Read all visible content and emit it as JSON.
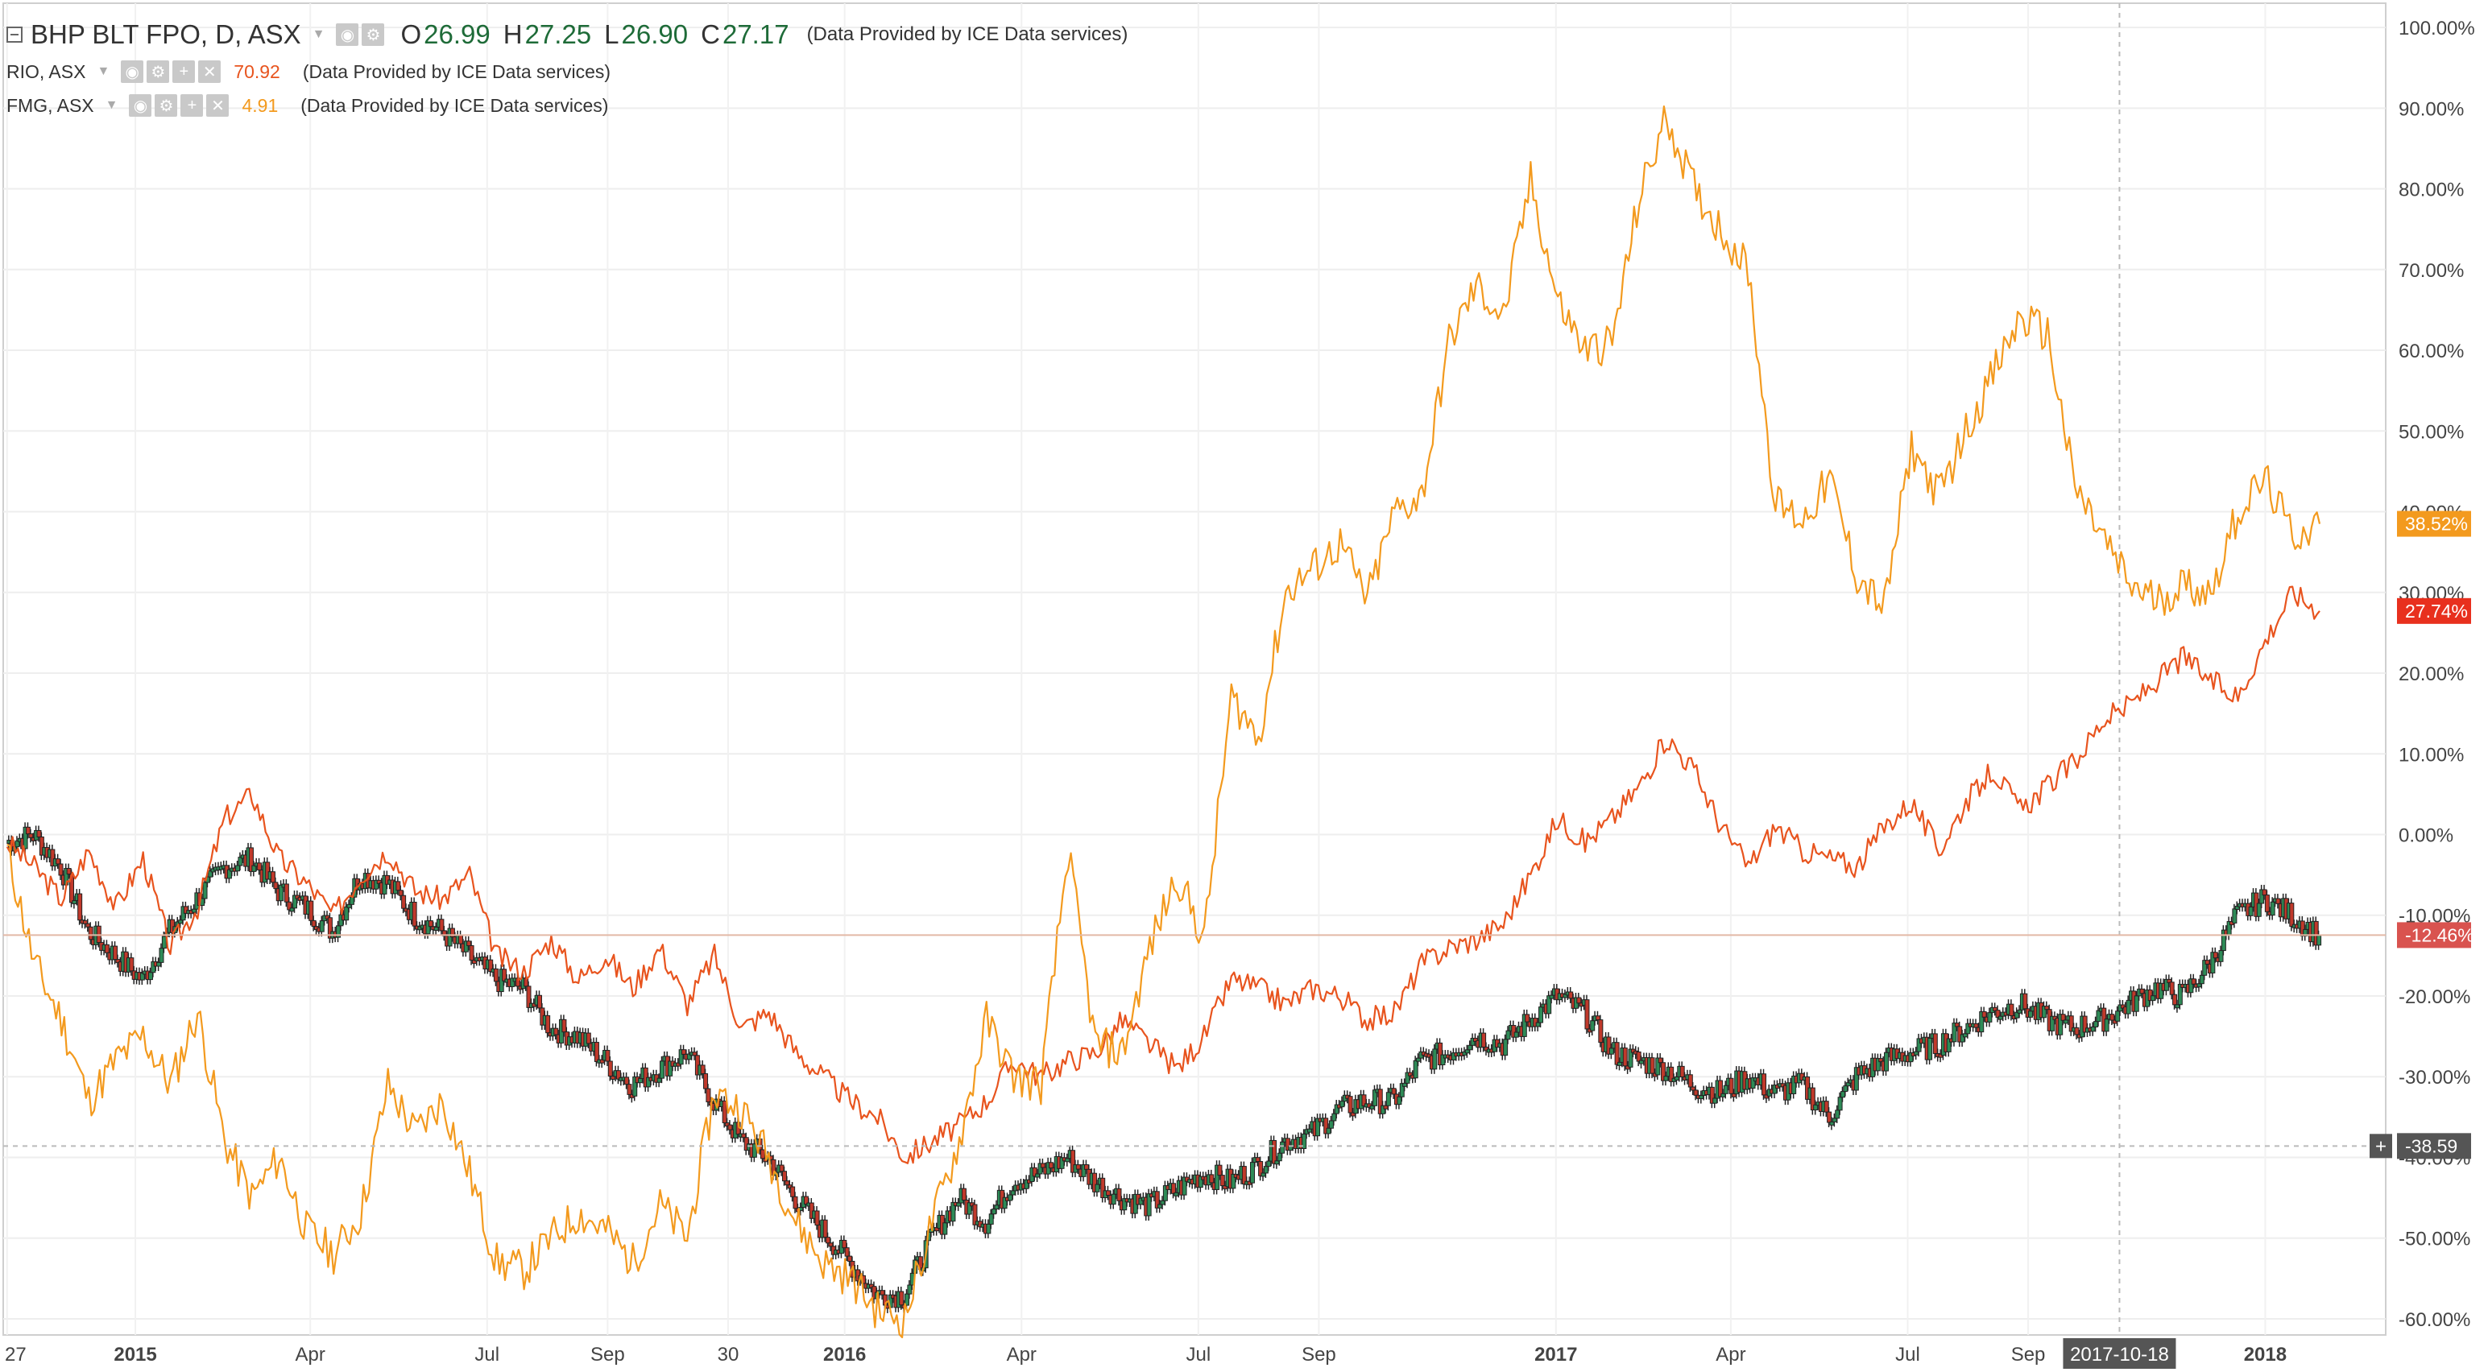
{
  "legend": {
    "main_title": "BHP BLT FPO, D, ASX",
    "open_label": "O",
    "open_value": "26.99",
    "high_label": "H",
    "high_value": "27.25",
    "low_label": "L",
    "low_value": "26.90",
    "close_label": "C",
    "close_value": "27.17",
    "main_provider": "(Data Provided by ICE Data services)",
    "series": [
      {
        "name": "RIO, ASX",
        "value": "70.92",
        "color": "#e8541e",
        "provider": "(Data Provided by ICE Data services)"
      },
      {
        "name": "FMG, ASX",
        "value": "4.91",
        "color": "#f39a1e",
        "provider": "(Data Provided by ICE Data services)"
      }
    ]
  },
  "chart_data": {
    "type": "line",
    "title": "BHP BLT FPO, D, ASX",
    "y_unit": "%",
    "ylim": [
      -62,
      103
    ],
    "y_ticks": [
      "100.00%",
      "90.00%",
      "80.00%",
      "70.00%",
      "60.00%",
      "50.00%",
      "40.00%",
      "30.00%",
      "20.00%",
      "10.00%",
      "0.00%",
      "-10.00%",
      "-20.00%",
      "-30.00%",
      "-40.00%",
      "-50.00%",
      "-60.00%"
    ],
    "x_ticks": [
      "27",
      "2015",
      "Apr",
      "Jul",
      "Sep",
      "30",
      "2016",
      "Apr",
      "Jul",
      "Sep",
      "2017",
      "Apr",
      "Jul",
      "Sep",
      "2017-10-18",
      "2018"
    ],
    "grid": true,
    "series": [
      {
        "name": "FMG, ASX",
        "color": "#f39a1e",
        "last_label": "38.52%",
        "style": "line",
        "x": [
          "2014-10-27",
          "2014-11-10",
          "2014-11-24",
          "2014-12-08",
          "2014-12-22",
          "2015-01-05",
          "2015-01-19",
          "2015-02-02",
          "2015-02-16",
          "2015-03-02",
          "2015-03-16",
          "2015-03-30",
          "2015-04-13",
          "2015-04-27",
          "2015-05-11",
          "2015-05-25",
          "2015-06-08",
          "2015-06-22",
          "2015-07-06",
          "2015-07-20",
          "2015-08-03",
          "2015-08-17",
          "2015-08-31",
          "2015-09-14",
          "2015-09-28",
          "2015-10-12",
          "2015-10-26",
          "2015-11-09",
          "2015-11-23",
          "2015-12-07",
          "2015-12-21",
          "2016-01-04",
          "2016-01-18",
          "2016-02-01",
          "2016-02-15",
          "2016-02-29",
          "2016-03-14",
          "2016-03-28",
          "2016-04-11",
          "2016-04-25",
          "2016-05-09",
          "2016-05-23",
          "2016-06-06",
          "2016-06-20",
          "2016-07-04",
          "2016-07-18",
          "2016-08-01",
          "2016-08-15",
          "2016-08-29",
          "2016-09-12",
          "2016-09-26",
          "2016-10-10",
          "2016-10-24",
          "2016-11-07",
          "2016-11-21",
          "2016-12-05",
          "2016-12-19",
          "2017-01-02",
          "2017-01-16",
          "2017-01-30",
          "2017-02-13",
          "2017-02-27",
          "2017-03-13",
          "2017-03-27",
          "2017-04-10",
          "2017-04-24",
          "2017-05-08",
          "2017-05-22",
          "2017-06-05",
          "2017-06-19",
          "2017-07-03",
          "2017-07-17",
          "2017-07-31",
          "2017-08-14",
          "2017-08-28",
          "2017-09-11",
          "2017-09-25",
          "2017-10-09",
          "2017-10-23",
          "2017-11-06",
          "2017-11-20",
          "2017-12-04",
          "2017-12-18",
          "2018-01-01",
          "2018-01-15",
          "2018-01-29"
        ],
        "values": [
          -2,
          -16,
          -23,
          -33,
          -28,
          -25,
          -31,
          -22,
          -38,
          -45,
          -40,
          -49,
          -52,
          -47,
          -31,
          -37,
          -33,
          -42,
          -53,
          -54,
          -50,
          -47,
          -49,
          -53,
          -46,
          -50,
          -32,
          -34,
          -40,
          -48,
          -53,
          -55,
          -59,
          -60,
          -48,
          -38,
          -23,
          -30,
          -31,
          -2,
          -26,
          -27,
          -14,
          -5,
          -13,
          17,
          12,
          30,
          33,
          36,
          29,
          40,
          42,
          61,
          68,
          64,
          81,
          66,
          60,
          61,
          79,
          89,
          80,
          75,
          70,
          41,
          39,
          44,
          32,
          28,
          48,
          42,
          50,
          57,
          64,
          62,
          43,
          37,
          31,
          29,
          31,
          30,
          40,
          44,
          37,
          38.5
        ]
      },
      {
        "name": "RIO, ASX",
        "color": "#e8541e",
        "last_label": "27.74%",
        "style": "line",
        "x": [
          "2014-10-27",
          "2014-11-10",
          "2014-11-24",
          "2014-12-08",
          "2014-12-22",
          "2015-01-05",
          "2015-01-19",
          "2015-02-02",
          "2015-02-16",
          "2015-03-02",
          "2015-03-16",
          "2015-03-30",
          "2015-04-13",
          "2015-04-27",
          "2015-05-11",
          "2015-05-25",
          "2015-06-08",
          "2015-06-22",
          "2015-07-06",
          "2015-07-20",
          "2015-08-03",
          "2015-08-17",
          "2015-08-31",
          "2015-09-14",
          "2015-09-28",
          "2015-10-12",
          "2015-10-26",
          "2015-11-09",
          "2015-11-23",
          "2015-12-07",
          "2015-12-21",
          "2016-01-04",
          "2016-01-18",
          "2016-02-01",
          "2016-02-15",
          "2016-02-29",
          "2016-03-14",
          "2016-03-28",
          "2016-04-11",
          "2016-04-25",
          "2016-05-09",
          "2016-05-23",
          "2016-06-06",
          "2016-06-20",
          "2016-07-04",
          "2016-07-18",
          "2016-08-01",
          "2016-08-15",
          "2016-08-29",
          "2016-09-12",
          "2016-09-26",
          "2016-10-10",
          "2016-10-24",
          "2016-11-07",
          "2016-11-21",
          "2016-12-05",
          "2016-12-19",
          "2017-01-02",
          "2017-01-16",
          "2017-01-30",
          "2017-02-13",
          "2017-02-27",
          "2017-03-13",
          "2017-03-27",
          "2017-04-10",
          "2017-04-24",
          "2017-05-08",
          "2017-05-22",
          "2017-06-05",
          "2017-06-19",
          "2017-07-03",
          "2017-07-17",
          "2017-07-31",
          "2017-08-14",
          "2017-08-28",
          "2017-09-11",
          "2017-09-25",
          "2017-10-09",
          "2017-10-23",
          "2017-11-06",
          "2017-11-20",
          "2017-12-04",
          "2017-12-18",
          "2018-01-01",
          "2018-01-15",
          "2018-01-29"
        ],
        "values": [
          -1,
          -4,
          -8,
          -2,
          -9,
          -3,
          -14,
          -9,
          2,
          5,
          -3,
          -6,
          -10,
          -5,
          -2,
          -7,
          -8,
          -5,
          -15,
          -17,
          -13,
          -18,
          -15,
          -19,
          -14,
          -21,
          -15,
          -24,
          -22,
          -27,
          -30,
          -33,
          -35,
          -40,
          -38,
          -36,
          -33,
          -28,
          -30,
          -28,
          -27,
          -23,
          -26,
          -29,
          -25,
          -18,
          -19,
          -21,
          -19,
          -20,
          -23,
          -22,
          -16,
          -14,
          -13,
          -11,
          -5,
          2,
          -1,
          2,
          6,
          12,
          8,
          1,
          -4,
          1,
          -2,
          -3,
          -4,
          1,
          4,
          -2,
          4,
          8,
          3,
          6,
          9,
          14,
          16,
          19,
          22,
          19,
          17,
          24,
          30,
          27.7
        ]
      },
      {
        "name": "BHP BLT FPO, D, ASX",
        "color": "#2e8b57",
        "last_label": "-12.46%",
        "style": "candles",
        "x": [
          "2014-10-27",
          "2014-11-10",
          "2014-11-24",
          "2014-12-08",
          "2014-12-22",
          "2015-01-05",
          "2015-01-19",
          "2015-02-02",
          "2015-02-16",
          "2015-03-02",
          "2015-03-16",
          "2015-03-30",
          "2015-04-13",
          "2015-04-27",
          "2015-05-11",
          "2015-05-25",
          "2015-06-08",
          "2015-06-22",
          "2015-07-06",
          "2015-07-20",
          "2015-08-03",
          "2015-08-17",
          "2015-08-31",
          "2015-09-14",
          "2015-09-28",
          "2015-10-12",
          "2015-10-26",
          "2015-11-09",
          "2015-11-23",
          "2015-12-07",
          "2015-12-21",
          "2016-01-04",
          "2016-01-18",
          "2016-02-01",
          "2016-02-15",
          "2016-02-29",
          "2016-03-14",
          "2016-03-28",
          "2016-04-11",
          "2016-04-25",
          "2016-05-09",
          "2016-05-23",
          "2016-06-06",
          "2016-06-20",
          "2016-07-04",
          "2016-07-18",
          "2016-08-01",
          "2016-08-15",
          "2016-08-29",
          "2016-09-12",
          "2016-09-26",
          "2016-10-10",
          "2016-10-24",
          "2016-11-07",
          "2016-11-21",
          "2016-12-05",
          "2016-12-19",
          "2017-01-02",
          "2017-01-16",
          "2017-01-30",
          "2017-02-13",
          "2017-02-27",
          "2017-03-13",
          "2017-03-27",
          "2017-04-10",
          "2017-04-24",
          "2017-05-08",
          "2017-05-22",
          "2017-06-05",
          "2017-06-19",
          "2017-07-03",
          "2017-07-17",
          "2017-07-31",
          "2017-08-14",
          "2017-08-28",
          "2017-09-11",
          "2017-09-25",
          "2017-10-09",
          "2017-10-23",
          "2017-11-06",
          "2017-11-20",
          "2017-12-04",
          "2017-12-18",
          "2018-01-01",
          "2018-01-15",
          "2018-01-29"
        ],
        "values": [
          -1,
          0,
          -4,
          -12,
          -15,
          -18,
          -12,
          -8,
          -4,
          -3,
          -7,
          -9,
          -12,
          -5,
          -6,
          -10,
          -12,
          -15,
          -18,
          -19,
          -24,
          -25,
          -28,
          -31,
          -29,
          -27,
          -33,
          -38,
          -40,
          -45,
          -49,
          -53,
          -57,
          -57,
          -50,
          -45,
          -48,
          -43,
          -42,
          -40,
          -43,
          -45,
          -46,
          -44,
          -42,
          -43,
          -41,
          -38,
          -37,
          -34,
          -33,
          -33,
          -28,
          -27,
          -25,
          -26,
          -23,
          -20,
          -22,
          -27,
          -28,
          -29,
          -31,
          -32,
          -30,
          -32,
          -31,
          -35,
          -30,
          -28,
          -27,
          -26,
          -24,
          -22,
          -21,
          -23,
          -24,
          -23,
          -21,
          -19,
          -20,
          -16,
          -10,
          -8,
          -10,
          -12.5
        ]
      }
    ],
    "horizontal_markers": [
      {
        "value": -12.46,
        "label": "-12.46%",
        "color": "#d9534f"
      },
      {
        "value": -38.59,
        "label": "-38.59",
        "color": "#555555"
      }
    ],
    "crosshair_date_label": "2017-10-18"
  }
}
